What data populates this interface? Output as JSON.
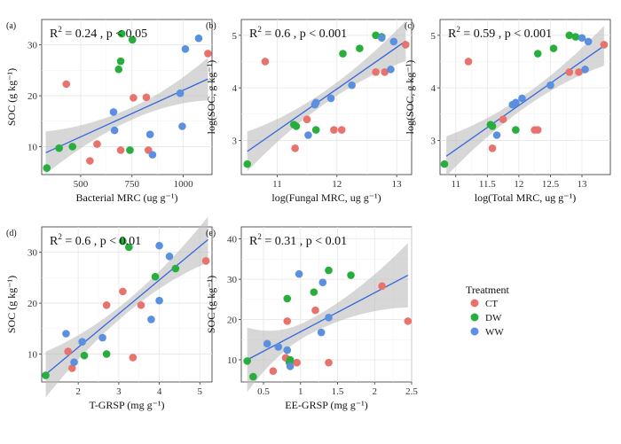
{
  "colors": {
    "CT": "#e8736c",
    "DW": "#27ae3c",
    "WW": "#5b8fe0",
    "fit": "#3366dd",
    "band": "#bdbdbd"
  },
  "legend": {
    "title": "Treatment",
    "items": [
      {
        "key": "CT",
        "label": "CT"
      },
      {
        "key": "DW",
        "label": "DW"
      },
      {
        "key": "WW",
        "label": "WW"
      }
    ]
  },
  "chart_data": [
    {
      "type": "scatter",
      "letter": "(a)",
      "stat_r2": "0.24",
      "stat_p": "p < 0.05",
      "xlabel": "Bacterial MRC (ug g⁻¹)",
      "ylabel": "SOC (g kg⁻¹)",
      "xlim": [
        310,
        1140
      ],
      "ylim": [
        4.5,
        35
      ],
      "xticks": [
        500,
        750,
        1000
      ],
      "yticks": [
        10,
        20,
        30
      ],
      "fit": [
        330,
        8.8,
        1120,
        23.3
      ],
      "band": {
        "x0": 330,
        "x1": 1120,
        "xc": 750,
        "hw_end": 4.2,
        "hw_mid": 1.2
      },
      "series": [
        {
          "key": "CT",
          "points": [
            [
              430,
              22.3
            ],
            [
              545,
              7.2
            ],
            [
              580,
              10.5
            ],
            [
              695,
              9.3
            ],
            [
              757,
              19.6
            ],
            [
              820,
              19.7
            ],
            [
              830,
              9.3
            ],
            [
              1120,
              28.3
            ]
          ]
        },
        {
          "key": "DW",
          "points": [
            [
              335,
              5.8
            ],
            [
              395,
              9.7
            ],
            [
              460,
              10.0
            ],
            [
              685,
              25.2
            ],
            [
              695,
              26.8
            ],
            [
              700,
              32.2
            ],
            [
              740,
              9.3
            ],
            [
              752,
              31.0
            ]
          ]
        },
        {
          "key": "WW",
          "points": [
            [
              660,
              16.8
            ],
            [
              665,
              13.2
            ],
            [
              838,
              12.4
            ],
            [
              850,
              8.4
            ],
            [
              985,
              20.5
            ],
            [
              995,
              14.0
            ],
            [
              1010,
              29.2
            ],
            [
              1075,
              31.3
            ]
          ]
        }
      ]
    },
    {
      "type": "scatter",
      "letter": "(b)",
      "stat_r2": "0.6",
      "stat_p": "p < 0.001",
      "xlabel": "log(Fungal MRC, ug g⁻¹)",
      "ylabel": "log(SOC, g kg⁻¹)",
      "xlim": [
        10.4,
        13.25
      ],
      "ylim": [
        2.35,
        5.3
      ],
      "xticks": [
        11,
        12,
        13
      ],
      "yticks": [
        3,
        4,
        5
      ],
      "fit": [
        10.5,
        2.79,
        13.15,
        4.89
      ],
      "band": {
        "x0": 10.5,
        "x1": 13.15,
        "xc": 11.8,
        "hw_end": 0.38,
        "hw_mid": 0.12
      },
      "series": [
        {
          "key": "CT",
          "points": [
            [
              10.8,
              4.5
            ],
            [
              11.3,
              2.85
            ],
            [
              11.5,
              3.4
            ],
            [
              11.95,
              3.2
            ],
            [
              12.08,
              3.2
            ],
            [
              12.65,
              4.3
            ],
            [
              12.8,
              4.3
            ],
            [
              13.15,
              4.82
            ]
          ]
        },
        {
          "key": "DW",
          "points": [
            [
              10.5,
              2.55
            ],
            [
              11.28,
              3.3
            ],
            [
              11.32,
              3.27
            ],
            [
              11.65,
              3.2
            ],
            [
              12.1,
              4.65
            ],
            [
              12.38,
              4.75
            ],
            [
              12.65,
              5.0
            ],
            [
              12.75,
              4.97
            ]
          ]
        },
        {
          "key": "WW",
          "points": [
            [
              11.52,
              3.1
            ],
            [
              11.63,
              3.68
            ],
            [
              11.65,
              3.72
            ],
            [
              11.9,
              3.8
            ],
            [
              12.25,
              4.05
            ],
            [
              12.75,
              4.95
            ],
            [
              12.9,
              4.35
            ],
            [
              12.95,
              4.88
            ]
          ]
        }
      ]
    },
    {
      "type": "scatter",
      "letter": "(c)",
      "stat_r2": "0.59",
      "stat_p": "p < 0.001",
      "xlabel": "log(Total MRC, ug g⁻¹)",
      "ylabel": "log(SOC, g kg⁻¹)",
      "xlim": [
        10.75,
        13.45
      ],
      "ylim": [
        2.35,
        5.3
      ],
      "xticks": [
        11.0,
        11.5,
        12.0,
        12.5,
        13.0
      ],
      "yticks": [
        3,
        4,
        5
      ],
      "fit": [
        10.85,
        2.7,
        13.35,
        4.8
      ],
      "band": {
        "x0": 10.85,
        "x1": 13.35,
        "xc": 12.1,
        "hw_end": 0.38,
        "hw_mid": 0.12
      },
      "series": [
        {
          "key": "CT",
          "points": [
            [
              11.2,
              4.5
            ],
            [
              11.58,
              2.85
            ],
            [
              11.75,
              3.4
            ],
            [
              12.25,
              3.2
            ],
            [
              12.3,
              3.2
            ],
            [
              12.8,
              4.3
            ],
            [
              12.95,
              4.3
            ],
            [
              13.35,
              4.82
            ]
          ]
        },
        {
          "key": "DW",
          "points": [
            [
              10.82,
              2.55
            ],
            [
              11.55,
              3.3
            ],
            [
              11.58,
              3.27
            ],
            [
              11.95,
              3.2
            ],
            [
              12.3,
              4.65
            ],
            [
              12.55,
              4.75
            ],
            [
              12.8,
              5.0
            ],
            [
              12.9,
              4.97
            ]
          ]
        },
        {
          "key": "WW",
          "points": [
            [
              11.65,
              3.1
            ],
            [
              11.9,
              3.68
            ],
            [
              11.95,
              3.72
            ],
            [
              12.05,
              3.8
            ],
            [
              12.5,
              4.05
            ],
            [
              13.0,
              4.95
            ],
            [
              13.05,
              4.35
            ],
            [
              13.1,
              4.88
            ]
          ]
        }
      ]
    },
    {
      "type": "scatter",
      "letter": "(d)",
      "stat_r2": "0.6",
      "stat_p": "p < 0.01",
      "xlabel": "T-GRSP  (mg g⁻¹)",
      "ylabel": "SOC (g kg⁻¹)",
      "xlim": [
        1.1,
        5.3
      ],
      "ylim": [
        4.5,
        35
      ],
      "xticks": [
        2,
        3,
        4,
        5
      ],
      "yticks": [
        10,
        20,
        30
      ],
      "fit": [
        1.2,
        6.0,
        5.2,
        32.5
      ],
      "band": {
        "x0": 1.2,
        "x1": 5.2,
        "xc": 3.2,
        "hw_end": 4.5,
        "hw_mid": 1.2
      },
      "series": [
        {
          "key": "CT",
          "points": [
            [
              1.75,
              10.5
            ],
            [
              1.85,
              7.2
            ],
            [
              2.7,
              19.6
            ],
            [
              3.1,
              22.3
            ],
            [
              3.35,
              9.3
            ],
            [
              3.55,
              19.6
            ],
            [
              5.15,
              28.3
            ]
          ]
        },
        {
          "key": "DW",
          "points": [
            [
              1.2,
              5.8
            ],
            [
              2.15,
              9.7
            ],
            [
              2.7,
              10.0
            ],
            [
              3.1,
              32.2
            ],
            [
              3.25,
              31.0
            ],
            [
              3.9,
              25.2
            ],
            [
              4.4,
              26.8
            ]
          ]
        },
        {
          "key": "WW",
          "points": [
            [
              1.7,
              14.0
            ],
            [
              1.9,
              8.4
            ],
            [
              2.1,
              12.4
            ],
            [
              2.6,
              13.2
            ],
            [
              3.8,
              16.8
            ],
            [
              4.0,
              20.5
            ],
            [
              4.0,
              31.3
            ],
            [
              4.25,
              29.2
            ]
          ]
        }
      ]
    },
    {
      "type": "scatter",
      "letter": "(e)",
      "stat_r2": "0.31",
      "stat_p": "p < 0.01",
      "xlabel": "EE-GRSP  (mg g⁻¹)",
      "ylabel": "SOC (g kg⁻¹)",
      "xlim": [
        0.2,
        2.5
      ],
      "ylim": [
        4.5,
        43
      ],
      "xticks": [
        0.5,
        1.0,
        1.5,
        2.0,
        2.5
      ],
      "yticks": [
        10,
        20,
        30,
        40
      ],
      "fit": [
        0.28,
        10.0,
        2.45,
        31.0
      ],
      "band": {
        "x0": 0.28,
        "x1": 2.45,
        "xc": 1.1,
        "hw_end": 8.0,
        "hw_mid": 1.8
      },
      "series": [
        {
          "key": "CT",
          "points": [
            [
              0.63,
              7.2
            ],
            [
              0.8,
              10.5
            ],
            [
              0.82,
              19.6
            ],
            [
              0.95,
              9.3
            ],
            [
              1.2,
              22.3
            ],
            [
              1.38,
              9.3
            ],
            [
              2.1,
              28.3
            ],
            [
              2.45,
              19.6
            ]
          ]
        },
        {
          "key": "DW",
          "points": [
            [
              0.28,
              9.7
            ],
            [
              0.36,
              5.8
            ],
            [
              0.82,
              25.2
            ],
            [
              0.85,
              9.3
            ],
            [
              0.86,
              10.0
            ],
            [
              1.18,
              26.8
            ],
            [
              1.38,
              32.2
            ],
            [
              1.68,
              31.0
            ]
          ]
        },
        {
          "key": "WW",
          "points": [
            [
              0.55,
              14.0
            ],
            [
              0.7,
              13.2
            ],
            [
              0.82,
              12.4
            ],
            [
              0.86,
              8.4
            ],
            [
              0.98,
              31.3
            ],
            [
              1.28,
              16.8
            ],
            [
              1.3,
              29.2
            ],
            [
              1.38,
              20.5
            ]
          ]
        }
      ]
    }
  ]
}
